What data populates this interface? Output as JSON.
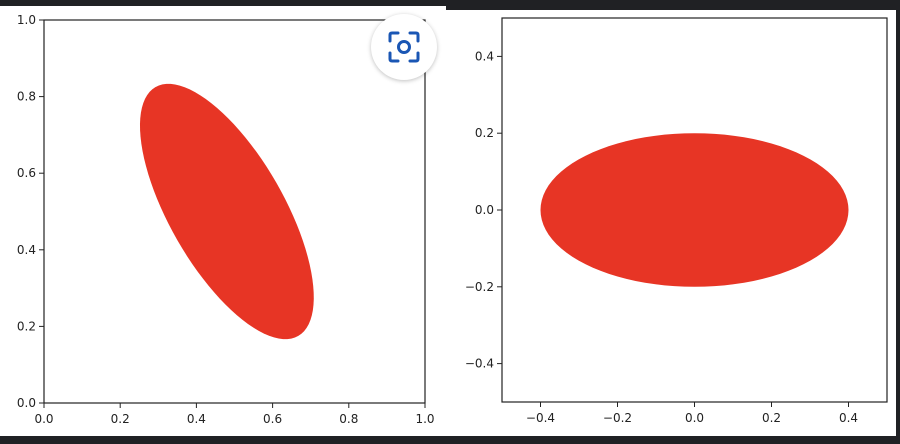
{
  "colors": {
    "ellipse_fill": "#e73525",
    "frame_bg": "#202124",
    "panel_bg": "#ffffff",
    "lens_icon": "#1a56b4"
  },
  "icons": {
    "lens": "visual-search-icon"
  },
  "chart_data": [
    {
      "type": "ellipse",
      "title": "",
      "xlabel": "",
      "ylabel": "",
      "xlim": [
        0,
        1
      ],
      "ylim": [
        0,
        1
      ],
      "xticks": [
        "0.0",
        "0.2",
        "0.4",
        "0.6",
        "0.8",
        "1.0"
      ],
      "yticks": [
        "0.0",
        "0.2",
        "0.4",
        "0.6",
        "0.8",
        "1.0"
      ],
      "grid": false,
      "ellipse": {
        "center": [
          0.48,
          0.5
        ],
        "width": 0.3,
        "height": 0.75,
        "angle_deg": 30
      }
    },
    {
      "type": "ellipse",
      "title": "",
      "xlabel": "",
      "ylabel": "",
      "xlim": [
        -0.5,
        0.5
      ],
      "ylim": [
        -0.5,
        0.5
      ],
      "xticks": [
        "−0.4",
        "−0.2",
        "0.0",
        "0.2",
        "0.4"
      ],
      "yticks": [
        "−0.4",
        "−0.2",
        "0.0",
        "0.2",
        "0.4"
      ],
      "grid": false,
      "ellipse": {
        "center": [
          0,
          0
        ],
        "width": 0.8,
        "height": 0.4,
        "angle_deg": 0
      }
    }
  ]
}
